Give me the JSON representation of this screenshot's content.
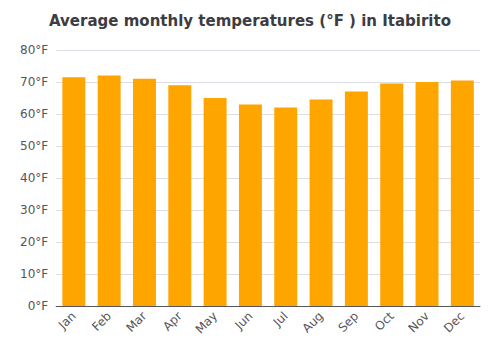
{
  "chart_data": {
    "type": "bar",
    "title": "Average monthly temperatures (°F ) in Itabirito",
    "categories": [
      "Jan",
      "Feb",
      "Mar",
      "Apr",
      "May",
      "Jun",
      "Jul",
      "Aug",
      "Sep",
      "Oct",
      "Nov",
      "Dec"
    ],
    "values": [
      71.5,
      72,
      71,
      69,
      65,
      63,
      62,
      64.5,
      67,
      69.5,
      70,
      70.5
    ],
    "color": "#FFA500",
    "ylim": [
      0,
      80
    ],
    "yticks": [
      {
        "value": 0,
        "label": "0°F"
      },
      {
        "value": 10,
        "label": "10°F"
      },
      {
        "value": 20,
        "label": "20°F"
      },
      {
        "value": 30,
        "label": "30°F"
      },
      {
        "value": 40,
        "label": "40°F"
      },
      {
        "value": 50,
        "label": "50°F"
      },
      {
        "value": 60,
        "label": "60°F"
      },
      {
        "value": 70,
        "label": "70°F"
      },
      {
        "value": 80,
        "label": "80°F"
      }
    ],
    "grid": true
  }
}
